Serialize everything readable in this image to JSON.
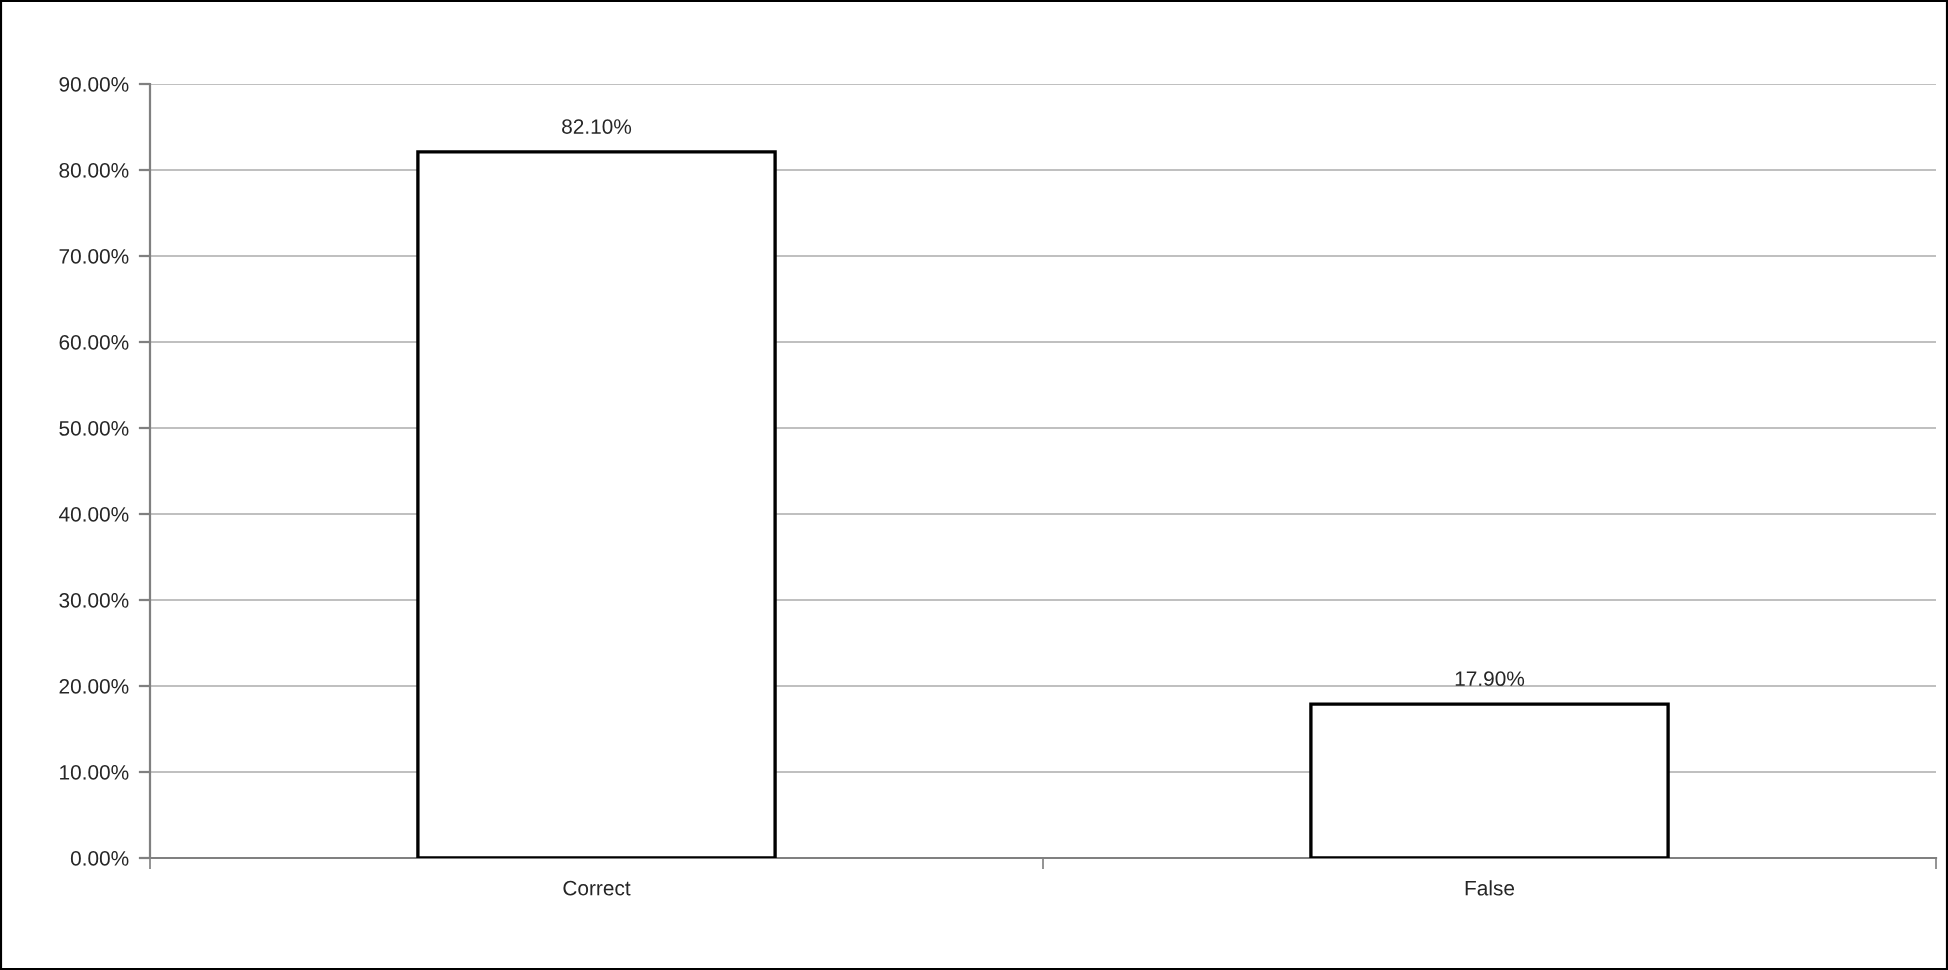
{
  "chart_data": {
    "type": "bar",
    "categories": [
      "Correct",
      "False"
    ],
    "values": [
      82.1,
      17.9
    ],
    "value_labels": [
      "82.10%",
      "17.90%"
    ],
    "color": "#ffffff",
    "ylim": [
      0,
      90
    ],
    "yticks": [
      {
        "value": 0,
        "label": "0.00%"
      },
      {
        "value": 10,
        "label": "10.00%"
      },
      {
        "value": 20,
        "label": "20.00%"
      },
      {
        "value": 30,
        "label": "30.00%"
      },
      {
        "value": 40,
        "label": "40.00%"
      },
      {
        "value": 50,
        "label": "50.00%"
      },
      {
        "value": 60,
        "label": "60.00%"
      },
      {
        "value": 70,
        "label": "70.00%"
      },
      {
        "value": 80,
        "label": "80.00%"
      },
      {
        "value": 90,
        "label": "90.00%"
      }
    ],
    "grid": "y",
    "legend": false
  }
}
